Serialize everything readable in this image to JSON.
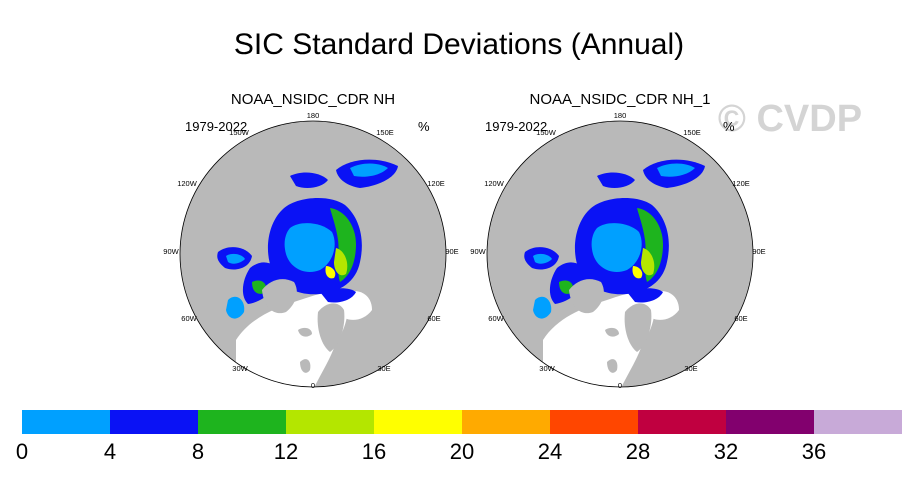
{
  "title": "SIC Standard Deviations (Annual)",
  "watermark": "© CVDP",
  "panels": [
    {
      "name": "NOAA_NSIDC_CDR NH",
      "period": "1979-2022",
      "units": "%"
    },
    {
      "name": "NOAA_NSIDC_CDR NH_1",
      "period": "1979-2022",
      "units": "%"
    }
  ],
  "longitude_labels": [
    "180",
    "150E",
    "120E",
    "90E",
    "60E",
    "30E",
    "0",
    "30W",
    "60W",
    "90W",
    "120W",
    "150W"
  ],
  "colorbar": {
    "levels": [
      "0",
      "4",
      "8",
      "12",
      "16",
      "20",
      "24",
      "28",
      "32",
      "36"
    ],
    "colors": [
      "#00a0ff",
      "#0a12f5",
      "#1eb41e",
      "#b4e600",
      "#ffff00",
      "#ffaa00",
      "#ff4600",
      "#c00040",
      "#82006e",
      "#c8aad8"
    ]
  },
  "map_colors": {
    "land": "#b9b9b9",
    "ocean": "#ffffff",
    "outline": "#000000"
  }
}
